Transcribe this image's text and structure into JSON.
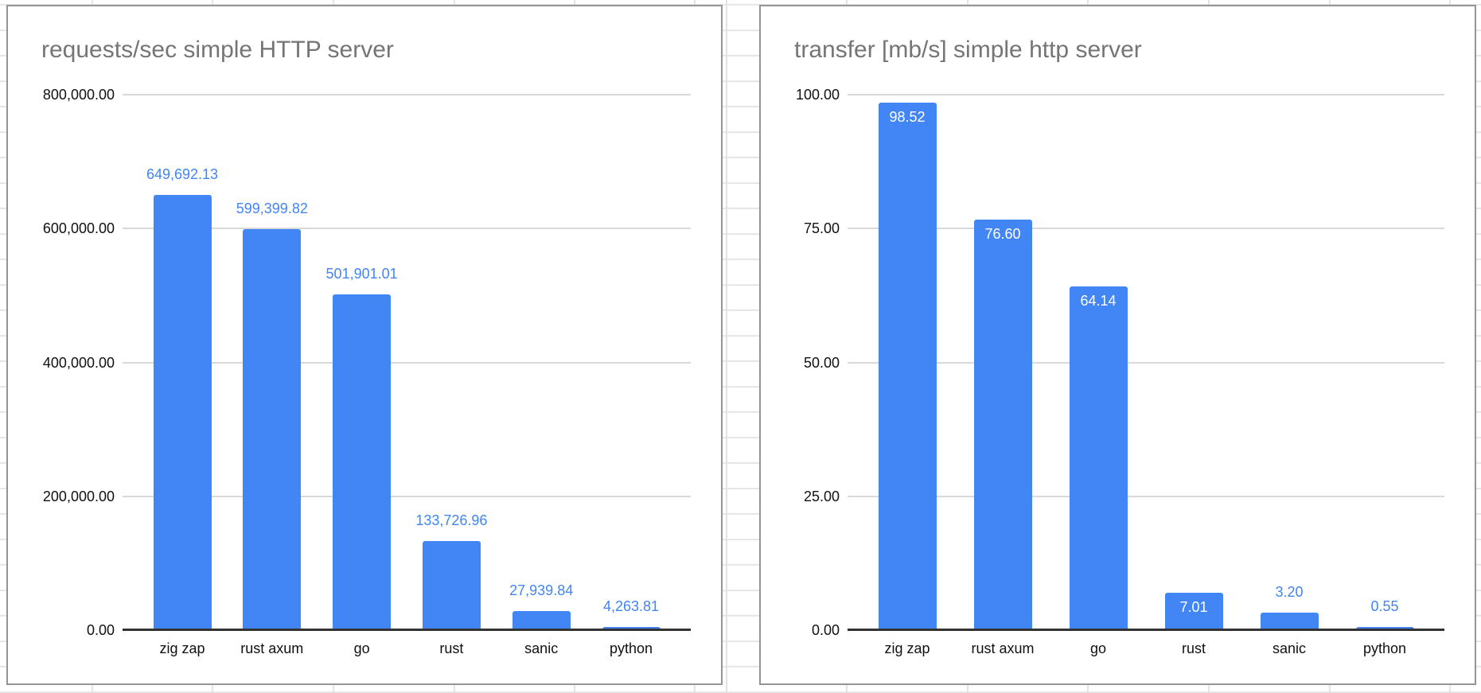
{
  "colors": {
    "bar": "#4285f4",
    "data_label_outside": "#4285f4",
    "data_label_inside": "#ffffff",
    "chart_title": "#757575",
    "axis_text": "#111111",
    "gridline": "#d9d9d9",
    "axis_line": "#333333",
    "chart_border": "#949494",
    "sheet_gridline": "#e4e4e4"
  },
  "chart_data": [
    {
      "type": "bar",
      "title": "requests/sec simple HTTP server",
      "categories": [
        "zig zap",
        "rust axum",
        "go",
        "rust",
        "sanic",
        "python"
      ],
      "values": [
        649692.13,
        599399.82,
        501901.01,
        133726.96,
        27939.84,
        4263.81
      ],
      "data_labels": [
        "649,692.13",
        "599,399.82",
        "501,901.01",
        "133,726.96",
        "27,939.84",
        "4,263.81"
      ],
      "label_placement": [
        "outside",
        "outside",
        "outside",
        "outside",
        "outside",
        "outside"
      ],
      "y_ticks": [
        {
          "label": "800,000.00",
          "value": 800000
        },
        {
          "label": "600,000.00",
          "value": 600000
        },
        {
          "label": "400,000.00",
          "value": 400000
        },
        {
          "label": "200,000.00",
          "value": 200000
        },
        {
          "label": "0.00",
          "value": 0
        }
      ],
      "ylim": [
        0,
        800000
      ],
      "grid": true,
      "legend": "none"
    },
    {
      "type": "bar",
      "title": "transfer [mb/s] simple http server",
      "categories": [
        "zig zap",
        "rust axum",
        "go",
        "rust",
        "sanic",
        "python"
      ],
      "values": [
        98.52,
        76.6,
        64.14,
        7.01,
        3.2,
        0.55
      ],
      "data_labels": [
        "98.52",
        "76.60",
        "64.14",
        "7.01",
        "3.20",
        "0.55"
      ],
      "label_placement": [
        "inside",
        "inside",
        "inside",
        "inside",
        "outside",
        "outside"
      ],
      "y_ticks": [
        {
          "label": "100.00",
          "value": 100
        },
        {
          "label": "75.00",
          "value": 75
        },
        {
          "label": "50.00",
          "value": 50
        },
        {
          "label": "25.00",
          "value": 25
        },
        {
          "label": "0.00",
          "value": 0
        }
      ],
      "ylim": [
        0,
        100
      ],
      "grid": true,
      "legend": "none"
    }
  ]
}
